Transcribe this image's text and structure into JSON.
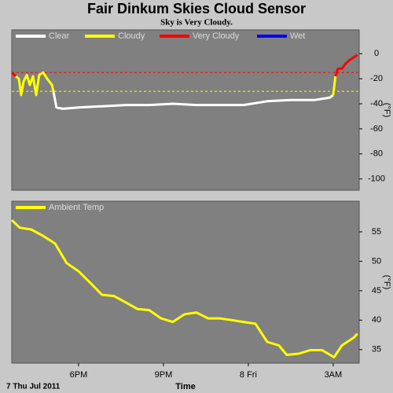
{
  "title": "Fair Dinkum Skies Cloud Sensor",
  "subtitle": "Sky is Very Cloudy.",
  "chart_data": [
    {
      "type": "line",
      "y_label": "(°F)",
      "x": [
        15.64,
        15.78,
        15.89,
        15.97,
        16.06,
        16.17,
        16.28,
        16.39,
        16.5,
        16.61,
        16.75,
        16.89,
        17.06,
        17.11,
        17.22,
        17.44,
        18,
        18.83,
        19.67,
        20.5,
        21.33,
        22.17,
        23,
        23.83,
        24.11,
        24.67,
        25.5,
        26.33,
        26.89,
        27,
        27.08,
        27.17,
        27.31,
        27.44,
        27.58,
        27.72,
        27.86
      ],
      "series": [
        {
          "name": "Clear",
          "color": "#ffffff",
          "values": [
            null,
            null,
            null,
            null,
            null,
            null,
            null,
            null,
            null,
            null,
            null,
            null,
            null,
            -30,
            -43,
            -44,
            -43,
            -42,
            -41,
            -41,
            -40,
            -41,
            -41,
            -41,
            -40,
            -38,
            -37,
            -37,
            -35,
            -33,
            null,
            null,
            null,
            null,
            null,
            null,
            null
          ]
        },
        {
          "name": "Cloudy",
          "color": "#ffff00",
          "values": [
            null,
            -18,
            -20,
            -33,
            -22,
            -17,
            -25,
            -18,
            -33,
            -17,
            -15,
            -20,
            -25,
            -30,
            null,
            null,
            null,
            null,
            null,
            null,
            null,
            null,
            null,
            null,
            null,
            null,
            null,
            null,
            null,
            -33,
            -18,
            null,
            null,
            null,
            null,
            null,
            null
          ]
        },
        {
          "name": "Very Cloudy",
          "color": "#ff0000",
          "values": [
            -15,
            -18,
            null,
            null,
            null,
            null,
            null,
            null,
            null,
            null,
            null,
            null,
            null,
            null,
            null,
            null,
            null,
            null,
            null,
            null,
            null,
            null,
            null,
            null,
            null,
            null,
            null,
            null,
            null,
            null,
            -18,
            -12,
            -12,
            -8,
            -5,
            -3,
            -1
          ]
        },
        {
          "name": "Wet",
          "color": "#0000ff",
          "values": [
            null,
            null,
            null,
            null,
            null,
            null,
            null,
            null,
            null,
            null,
            null,
            null,
            null,
            null,
            null,
            null,
            null,
            null,
            null,
            null,
            null,
            null,
            null,
            null,
            null,
            null,
            null,
            null,
            null,
            null,
            null,
            null,
            null,
            null,
            null,
            null,
            null
          ]
        }
      ],
      "thresholds": [
        {
          "value": -15,
          "color": "#ff0000"
        },
        {
          "value": -30,
          "color": "#ffff00"
        }
      ],
      "xlim": [
        15.64,
        27.92
      ],
      "ylim": [
        -109,
        19
      ],
      "yticks": [
        0,
        -20,
        -40,
        -60,
        -80,
        -100
      ]
    },
    {
      "type": "line",
      "y_label": "(°F)",
      "x_label": "Time",
      "date_label": "7 Thu Jul 2011",
      "x": [
        15.64,
        15.92,
        16.33,
        16.75,
        17.17,
        17.58,
        18,
        18.42,
        18.83,
        19.25,
        19.67,
        20.08,
        20.5,
        20.92,
        21.33,
        21.75,
        22.17,
        22.58,
        23,
        23.42,
        23.83,
        24.25,
        24.67,
        25.08,
        25.36,
        25.78,
        26.19,
        26.61,
        27.03,
        27.31,
        27.72,
        27.86
      ],
      "series": [
        {
          "name": "Ambient Temp",
          "color": "#ffff00",
          "values": [
            57,
            55.7,
            55.4,
            54.3,
            53,
            49.7,
            48.3,
            46.3,
            44.3,
            44.1,
            43,
            41.9,
            41.7,
            40.3,
            39.7,
            41,
            41.3,
            40.3,
            40.3,
            40,
            39.7,
            39.4,
            36.3,
            35.7,
            34.1,
            34.3,
            34.9,
            34.9,
            33.7,
            35.7,
            37,
            37.7
          ]
        }
      ],
      "xlim": [
        15.64,
        27.92
      ],
      "ylim": [
        32.7,
        60.2
      ],
      "yticks": [
        55,
        50,
        45,
        40,
        35
      ],
      "xticks": [
        {
          "value": 18,
          "label": "6PM"
        },
        {
          "value": 21,
          "label": "9PM"
        },
        {
          "value": 24,
          "label": "8 Fri"
        },
        {
          "value": 27,
          "label": "3AM"
        }
      ]
    }
  ]
}
